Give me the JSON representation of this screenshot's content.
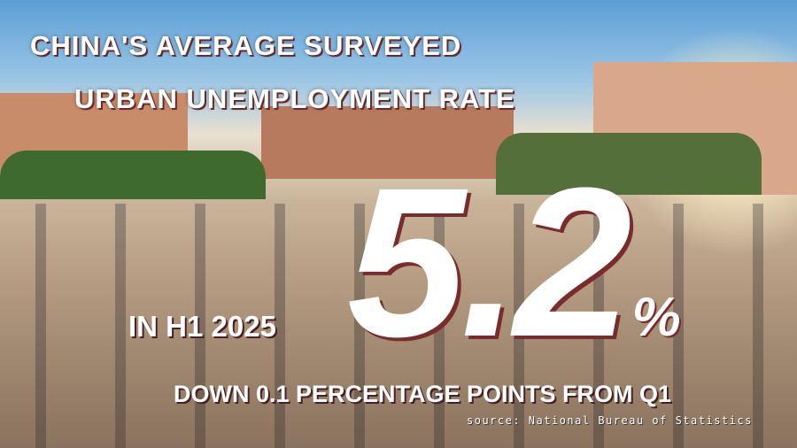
{
  "headline": {
    "line1": "CHINA'S AVERAGE SURVEYED",
    "line2": "URBAN UNEMPLOYMENT RATE"
  },
  "rate": {
    "value": "5.2",
    "unit": "%"
  },
  "period": "IN H1 2025",
  "change": "DOWN 0.1 PERCENTAGE POINTS FROM Q1",
  "source": "source: National Bureau of Statistics",
  "colors": {
    "text": "#ffffff",
    "shadow": "#7a2b2b"
  }
}
